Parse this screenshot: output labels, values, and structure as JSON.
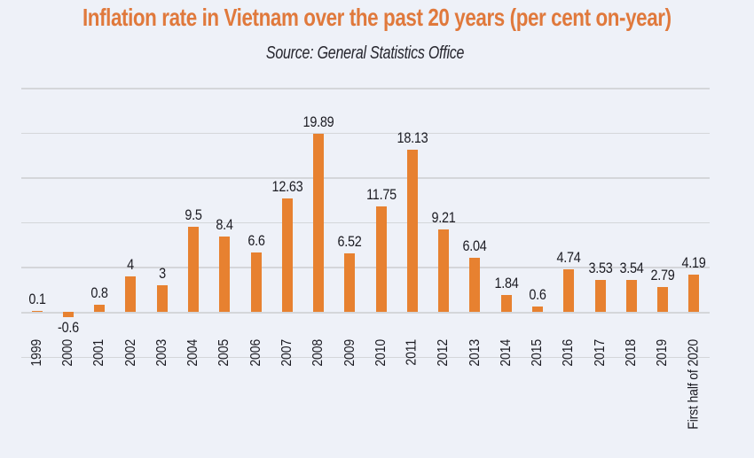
{
  "title": "Inflation rate in Vietnam over the past 20 years (per cent on-year)",
  "subtitle": "Source: General Statistics Office",
  "colors": {
    "background": "#eef1f8",
    "title": "#e0793c",
    "bar": "#e78130",
    "text": "#1b1b22",
    "gridline": "#d4d6da",
    "subtitle": "#25252d"
  },
  "chart_data": {
    "type": "bar",
    "title": "Inflation rate in Vietnam over the past 20 years (per cent on-year)",
    "subtitle": "Source: General Statistics Office",
    "categories": [
      "1999",
      "2000",
      "2001",
      "2002",
      "2003",
      "2004",
      "2005",
      "2006",
      "2007",
      "2008",
      "2009",
      "2010",
      "2011",
      "2012",
      "2013",
      "2014",
      "2015",
      "2016",
      "2017",
      "2018",
      "2019",
      "First half of 2020"
    ],
    "values": [
      0.1,
      -0.6,
      0.8,
      4,
      3,
      9.5,
      8.4,
      6.6,
      12.63,
      19.89,
      6.52,
      11.75,
      18.13,
      9.21,
      6.04,
      1.84,
      0.6,
      4.74,
      3.53,
      3.54,
      2.79,
      4.19
    ],
    "value_labels": [
      "0.1",
      "-0.6",
      "0.8",
      "4",
      "3",
      "9.5",
      "8.4",
      "6.6",
      "12.63",
      "19.89",
      "6.52",
      "11.75",
      "18.13",
      "9.21",
      "6.04",
      "1.84",
      "0.6",
      "4.74",
      "3.53",
      "3.54",
      "2.79",
      "4.19"
    ],
    "xlabel": "",
    "ylabel": "",
    "ylim": [
      -5,
      25
    ],
    "grid_step": 5,
    "grid": true,
    "legend": "none",
    "y_tick_labels_visible": false,
    "x_label_rotation_deg": 90
  }
}
